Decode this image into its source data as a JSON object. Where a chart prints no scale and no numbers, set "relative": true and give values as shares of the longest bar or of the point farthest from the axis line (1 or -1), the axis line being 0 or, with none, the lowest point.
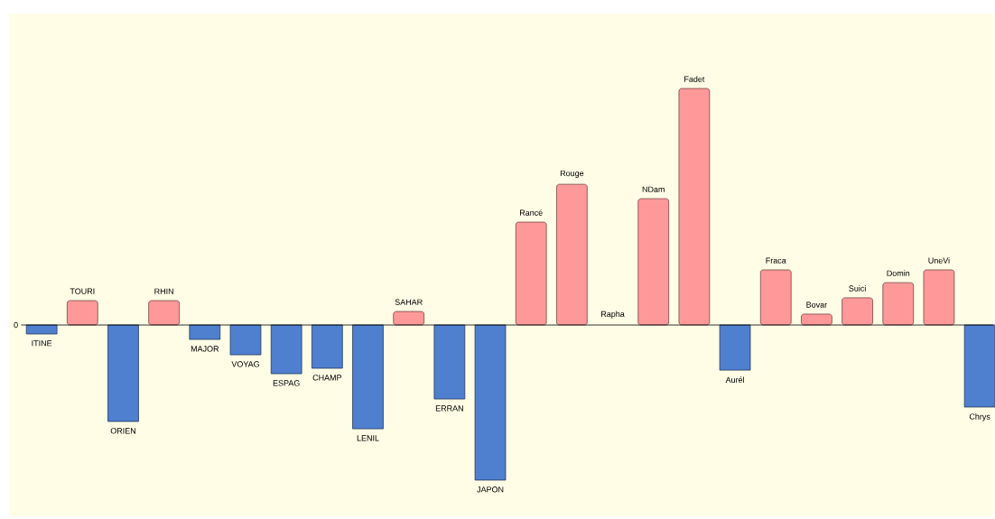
{
  "chart_data": {
    "type": "bar",
    "relative": true,
    "categories": [
      "ITINE",
      "TOURI",
      "ORIEN",
      "RHIN",
      "MAJOR",
      "VOYAG",
      "ESPAG",
      "CHAMP",
      "LENIL",
      "SAHAR",
      "ERRAN",
      "JAPON",
      "Rancé",
      "Rouge",
      "Rapha",
      "NDam",
      "Fadet",
      "Aurél",
      "Fraca",
      "Bovar",
      "Suici",
      "Domin",
      "UneVi",
      "Chrys"
    ],
    "values": [
      -0.038,
      0.103,
      -0.408,
      0.103,
      -0.061,
      -0.126,
      -0.206,
      -0.183,
      -0.439,
      0.057,
      -0.313,
      -0.656,
      0.435,
      0.595,
      0,
      0.534,
      1,
      -0.191,
      0.233,
      0.046,
      0.115,
      0.179,
      0.233,
      -0.347
    ],
    "colors": [
      "#4f7fcf",
      "#ff9999",
      "#4f7fcf",
      "#ff9999",
      "#4f7fcf",
      "#4f7fcf",
      "#4f7fcf",
      "#4f7fcf",
      "#4f7fcf",
      "#ff9999",
      "#4f7fcf",
      "#4f7fcf",
      "#ff9999",
      "#ff9999",
      "#ff9999",
      "#ff9999",
      "#ff9999",
      "#4f7fcf",
      "#ff9999",
      "#ff9999",
      "#ff9999",
      "#ff9999",
      "#ff9999",
      "#4f7fcf"
    ],
    "annotations": [
      "0"
    ]
  }
}
